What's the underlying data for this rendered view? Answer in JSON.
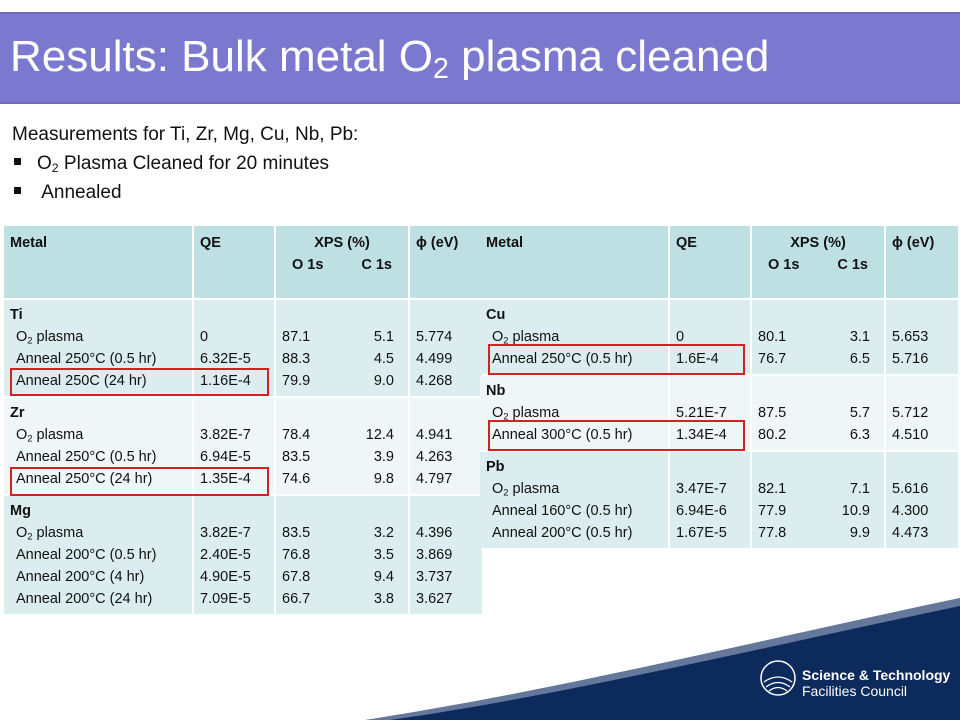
{
  "title": {
    "prefix": "Results: Bulk metal O",
    "sub": "2",
    "suffix": " plasma cleaned"
  },
  "intro": {
    "line1": "Measurements for Ti, Zr, Mg, Cu, Nb, Pb:",
    "bullet1_prefix": "O",
    "bullet1_sub": "2",
    "bullet1_suffix": " Plasma Cleaned for 20 minutes",
    "bullet2": "Annealed"
  },
  "headers": {
    "metal": "Metal",
    "qe": "QE",
    "xps": "XPS (%)",
    "o1s": "O 1s",
    "c1s": "C 1s",
    "phi": "ϕ (eV)"
  },
  "left_table": [
    {
      "name": "Ti",
      "rows": [
        {
          "cond_prefix": "O",
          "cond_sub": "2",
          "cond_suffix": " plasma",
          "qe": "0",
          "o": "87.1",
          "c": "5.1",
          "phi": "5.774"
        },
        {
          "cond": "Anneal 250°C (0.5 hr)",
          "qe": "6.32E-5",
          "o": "88.3",
          "c": "4.5",
          "phi": "4.499"
        },
        {
          "cond": "Anneal 250C (24 hr)",
          "qe": "1.16E-4",
          "o": "79.9",
          "c": "9.0",
          "phi": "4.268"
        }
      ]
    },
    {
      "name": "Zr",
      "rows": [
        {
          "cond_prefix": "O",
          "cond_sub": "2",
          "cond_suffix": " plasma",
          "qe": "3.82E-7",
          "o": "78.4",
          "c": "12.4",
          "phi": "4.941"
        },
        {
          "cond": "Anneal 250°C (0.5 hr)",
          "qe": "6.94E-5",
          "o": "83.5",
          "c": "3.9",
          "phi": "4.263"
        },
        {
          "cond": "Anneal 250°C (24 hr)",
          "qe": "1.35E-4",
          "o": "74.6",
          "c": "9.8",
          "phi": "4.797"
        }
      ]
    },
    {
      "name": "Mg",
      "rows": [
        {
          "cond_prefix": "O",
          "cond_sub": "2",
          "cond_suffix": " plasma",
          "qe": "3.82E-7",
          "o": "83.5",
          "c": "3.2",
          "phi": "4.396"
        },
        {
          "cond": "Anneal 200°C (0.5 hr)",
          "qe": "2.40E-5",
          "o": "76.8",
          "c": "3.5",
          "phi": "3.869"
        },
        {
          "cond": "Anneal 200°C (4 hr)",
          "qe": "4.90E-5",
          "o": "67.8",
          "c": "9.4",
          "phi": "3.737"
        },
        {
          "cond": "Anneal 200°C (24 hr)",
          "qe": "7.09E-5",
          "o": "66.7",
          "c": "3.8",
          "phi": "3.627"
        }
      ]
    }
  ],
  "right_table": [
    {
      "name": "Cu",
      "rows": [
        {
          "cond_prefix": "O",
          "cond_sub": "2",
          "cond_suffix": " plasma",
          "qe": "0",
          "o": "80.1",
          "c": "3.1",
          "phi": "5.653"
        },
        {
          "cond": "Anneal 250°C (0.5 hr)",
          "qe": "1.6E-4",
          "o": "76.7",
          "c": "6.5",
          "phi": "5.716"
        }
      ]
    },
    {
      "name": "Nb",
      "rows": [
        {
          "cond_prefix": "O",
          "cond_sub": "2",
          "cond_suffix": " plasma",
          "qe": "5.21E-7",
          "o": "87.5",
          "c": "5.7",
          "phi": "5.712"
        },
        {
          "cond": "Anneal 300°C (0.5 hr)",
          "qe": "1.34E-4",
          "o": "80.2",
          "c": "6.3",
          "phi": "4.510"
        }
      ]
    },
    {
      "name": "Pb",
      "rows": [
        {
          "cond_prefix": "O",
          "cond_sub": "2",
          "cond_suffix": " plasma",
          "qe": "3.47E-7",
          "o": "82.1",
          "c": "7.1",
          "phi": "5.616"
        },
        {
          "cond": "Anneal 160°C (0.5 hr)",
          "qe": "6.94E-6",
          "o": "77.9",
          "c": "10.9",
          "phi": "4.300"
        },
        {
          "cond": "Anneal 200°C (0.5 hr)",
          "qe": "1.67E-5",
          "o": "77.8",
          "c": "9.9",
          "phi": "4.473"
        }
      ]
    }
  ],
  "logo": {
    "line1": "Science & Technology",
    "line2": "Facilities Council"
  },
  "colors": {
    "title_bar": "#7b78d0",
    "header_cell": "#bfe0e3",
    "highlight": "#d32020",
    "footer": "#0d2a5c"
  }
}
